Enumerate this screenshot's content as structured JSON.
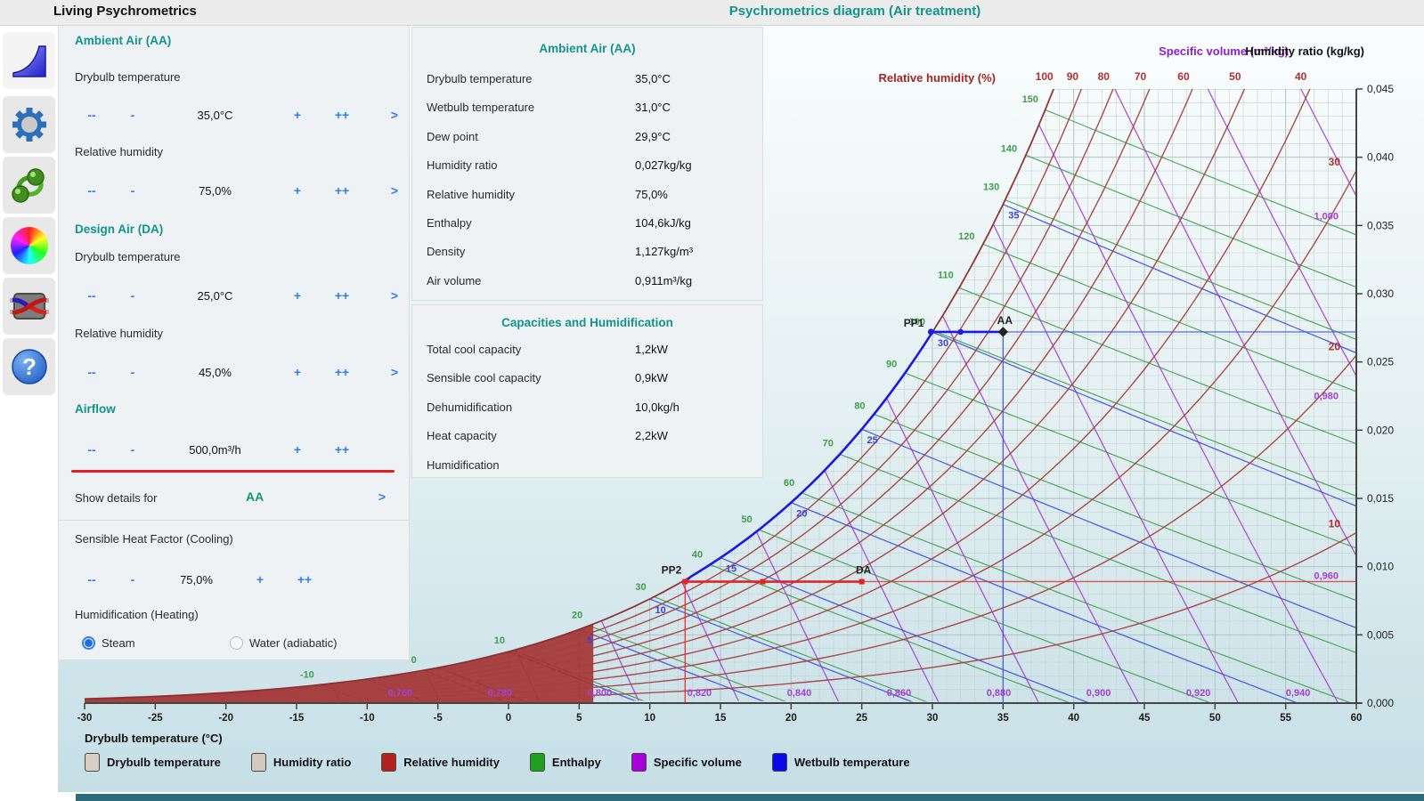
{
  "header": {
    "app_title": "Living Psychrometrics",
    "diagram_title": "Psychrometrics diagram (Air treatment)"
  },
  "sidebar": {
    "icons": [
      "psychrometric-chart-icon",
      "settings-gear-icon",
      "molecules-icon",
      "color-wheel-icon",
      "heat-exchanger-icon",
      "help-icon"
    ]
  },
  "controls": {
    "stepper": {
      "decrement_fast": "--",
      "decrement": "-",
      "increment": "+",
      "increment_fast": "++",
      "apply": ">"
    },
    "groups": [
      {
        "title": "Ambient Air (AA)",
        "fields": [
          {
            "label": "Drybulb temperature",
            "value": "35,0°C"
          },
          {
            "label": "Relative humidity",
            "value": "75,0%"
          }
        ]
      },
      {
        "title": "Design Air (DA)",
        "fields": [
          {
            "label": "Drybulb temperature",
            "value": "25,0°C"
          },
          {
            "label": "Relative humidity",
            "value": "45,0%"
          }
        ]
      },
      {
        "title": "Airflow",
        "fields": [
          {
            "label": "",
            "value": "500,0m³/h"
          }
        ]
      }
    ],
    "show_details": {
      "label": "Show details for",
      "value": "AA",
      "arrow": ">"
    },
    "shf": {
      "title": "Sensible Heat Factor (Cooling)",
      "value": "75,0%"
    },
    "humidification": {
      "title": "Humidification (Heating)",
      "options": [
        {
          "label": "Steam",
          "selected": true
        },
        {
          "label": "Water (adiabatic)",
          "selected": false
        }
      ]
    }
  },
  "details_panel": {
    "title": "Ambient Air (AA)",
    "rows": [
      {
        "label": "Drybulb temperature",
        "value": "35,0°C"
      },
      {
        "label": "Wetbulb temperature",
        "value": "31,0°C"
      },
      {
        "label": "Dew point",
        "value": "29,9°C"
      },
      {
        "label": "Humidity ratio",
        "value": "0,027kg/kg"
      },
      {
        "label": "Relative humidity",
        "value": "75,0%"
      },
      {
        "label": "Enthalpy",
        "value": "104,6kJ/kg"
      },
      {
        "label": "Density",
        "value": "1,127kg/m³"
      },
      {
        "label": "Air volume",
        "value": "0,911m³/kg"
      }
    ],
    "capacities": {
      "title": "Capacities and Humidification",
      "rows": [
        {
          "label": "Total cool capacity",
          "value": "1,2kW"
        },
        {
          "label": "Sensible cool capacity",
          "value": "0,9kW"
        },
        {
          "label": "Dehumidification",
          "value": "10,0kg/h"
        },
        {
          "label": "Heat capacity",
          "value": "2,2kW"
        },
        {
          "label": "Humidification",
          "value": ""
        }
      ]
    }
  },
  "chart_data": {
    "type": "psychrometric",
    "x_axis": {
      "label": "Drybulb temperature (°C)",
      "min": -30,
      "max": 60,
      "tick_step": 5
    },
    "y_axis": {
      "label": "Humidity ratio (kg/kg)",
      "min": 0.0,
      "max": 0.045,
      "tick_step": 0.005
    },
    "titles": {
      "specific_volume": "Specific volume (m³/kg)",
      "relative_humidity": "Relative humidity (%)",
      "humidity_ratio": "Humidity ratio (kg/kg)"
    },
    "colors": {
      "relative_humidity": "#a54040",
      "enthalpy": "#3f9e4c",
      "wetbulb": "#3646dd",
      "specific_volume": "#a43fd4",
      "grid_minor": "#c6d2d2",
      "grid_major": "#afc2c2",
      "process_blue": "#1b1be0",
      "process_red": "#e02525"
    },
    "families": {
      "relative_humidity": {
        "values": [
          10,
          20,
          30,
          40,
          50,
          60,
          70,
          80,
          90,
          100
        ],
        "top_labels": [
          100,
          90,
          80,
          70,
          60,
          50,
          40
        ],
        "right_labels": [
          30,
          20,
          10
        ]
      },
      "enthalpy": {
        "values": [
          -10,
          0,
          10,
          20,
          30,
          40,
          50,
          60,
          70,
          80,
          90,
          100,
          110,
          120,
          130,
          140,
          150
        ],
        "labels": [
          -10,
          0,
          10,
          20,
          30,
          40,
          50,
          60,
          70,
          80,
          90,
          100,
          110,
          120,
          130,
          140,
          150
        ]
      },
      "wetbulb": {
        "values": [
          -10,
          -5,
          0,
          5,
          10,
          15,
          20,
          25,
          30,
          35
        ],
        "labels": [
          5,
          10,
          15,
          20,
          25,
          30,
          35
        ]
      },
      "specific_volume": {
        "values": [
          0.72,
          0.74,
          0.76,
          0.78,
          0.8,
          0.82,
          0.84,
          0.86,
          0.88,
          0.9,
          0.92,
          0.94,
          0.96,
          0.98,
          1.0,
          1.02
        ],
        "bottom_labels": [
          0.76,
          0.78,
          0.8,
          0.82,
          0.84,
          0.86,
          0.88,
          0.9,
          0.92,
          0.94
        ],
        "right_labels": [
          1.0,
          0.98,
          0.96
        ]
      }
    },
    "process": {
      "points": [
        {
          "name": "AA",
          "t": 35.0,
          "w": 0.0272
        },
        {
          "name": "PP1",
          "t": 29.9,
          "w": 0.0272
        },
        {
          "name": "PP2",
          "t": 12.5,
          "w": 0.0089
        },
        {
          "name": "DA",
          "t": 25.0,
          "w": 0.0089
        }
      ],
      "markers": [
        {
          "t": 32.0,
          "w": 0.0272,
          "color": "blue"
        },
        {
          "t": 18.0,
          "w": 0.0089,
          "color": "red"
        }
      ]
    },
    "legend": [
      {
        "label": "Drybulb temperature",
        "color": "#d8cec6"
      },
      {
        "label": "Humidity ratio",
        "color": "#d2c9c0"
      },
      {
        "label": "Relative humidity",
        "color": "#b32020"
      },
      {
        "label": "Enthalpy",
        "color": "#1fa01f"
      },
      {
        "label": "Specific volume",
        "color": "#a800d8"
      },
      {
        "label": "Wetbulb temperature",
        "color": "#0a0ae8"
      }
    ]
  }
}
